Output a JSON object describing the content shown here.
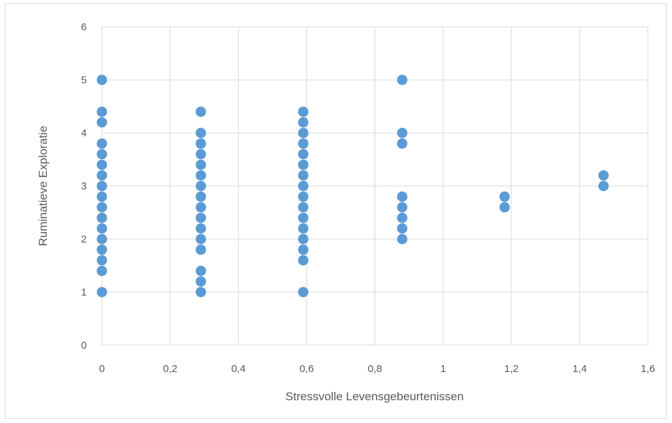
{
  "chart_data": {
    "type": "scatter",
    "title": "",
    "xlabel": "Stressvolle Levensgebeurtenissen",
    "ylabel": "Ruminatieve Exploratie",
    "xlim": [
      0,
      1.6
    ],
    "ylim": [
      0,
      6
    ],
    "xticks": [
      "0",
      "0,2",
      "0,4",
      "0,6",
      "0,8",
      "1",
      "1,2",
      "1,4",
      "1,6"
    ],
    "yticks": [
      "0",
      "1",
      "2",
      "3",
      "4",
      "5",
      "6"
    ],
    "grid": true,
    "legend": "none",
    "point_color": "#5b9bd5",
    "series": [
      {
        "points": [
          [
            0,
            1.0
          ],
          [
            0,
            1.4
          ],
          [
            0,
            1.6
          ],
          [
            0,
            1.8
          ],
          [
            0,
            2.0
          ],
          [
            0,
            2.2
          ],
          [
            0,
            2.4
          ],
          [
            0,
            2.6
          ],
          [
            0,
            2.8
          ],
          [
            0,
            3.0
          ],
          [
            0,
            3.2
          ],
          [
            0,
            3.4
          ],
          [
            0,
            3.6
          ],
          [
            0,
            3.8
          ],
          [
            0,
            4.2
          ],
          [
            0,
            4.4
          ],
          [
            0,
            5.0
          ],
          [
            0.29,
            1.0
          ],
          [
            0.29,
            1.2
          ],
          [
            0.29,
            1.4
          ],
          [
            0.29,
            1.8
          ],
          [
            0.29,
            2.0
          ],
          [
            0.29,
            2.2
          ],
          [
            0.29,
            2.4
          ],
          [
            0.29,
            2.6
          ],
          [
            0.29,
            2.8
          ],
          [
            0.29,
            3.0
          ],
          [
            0.29,
            3.2
          ],
          [
            0.29,
            3.4
          ],
          [
            0.29,
            3.6
          ],
          [
            0.29,
            3.8
          ],
          [
            0.29,
            4.0
          ],
          [
            0.29,
            4.4
          ],
          [
            0.59,
            1.0
          ],
          [
            0.59,
            1.6
          ],
          [
            0.59,
            1.8
          ],
          [
            0.59,
            2.0
          ],
          [
            0.59,
            2.2
          ],
          [
            0.59,
            2.4
          ],
          [
            0.59,
            2.6
          ],
          [
            0.59,
            2.8
          ],
          [
            0.59,
            3.0
          ],
          [
            0.59,
            3.2
          ],
          [
            0.59,
            3.4
          ],
          [
            0.59,
            3.6
          ],
          [
            0.59,
            3.8
          ],
          [
            0.59,
            4.0
          ],
          [
            0.59,
            4.2
          ],
          [
            0.59,
            4.4
          ],
          [
            0.88,
            2.0
          ],
          [
            0.88,
            2.2
          ],
          [
            0.88,
            2.4
          ],
          [
            0.88,
            2.6
          ],
          [
            0.88,
            2.8
          ],
          [
            0.88,
            3.8
          ],
          [
            0.88,
            4.0
          ],
          [
            0.88,
            5.0
          ],
          [
            1.18,
            2.6
          ],
          [
            1.18,
            2.8
          ],
          [
            1.47,
            3.0
          ],
          [
            1.47,
            3.2
          ]
        ]
      }
    ]
  }
}
